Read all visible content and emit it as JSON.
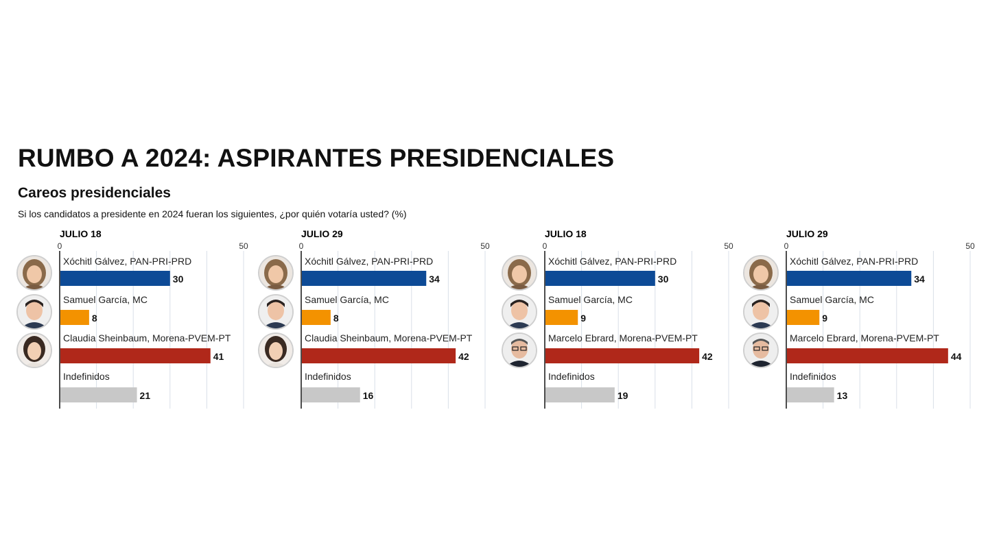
{
  "header": {
    "title": "RUMBO A 2024: ASPIRANTES PRESIDENCIALES",
    "subtitle": "Careos presidenciales",
    "question": "Si los candidatos a presidente en 2024 fueran los siguientes, ¿por quién votaría usted?  (%)"
  },
  "colors": {
    "pan": "#0d4a96",
    "mc": "#f39200",
    "morena": "#b0281a",
    "undecided": "#c8c8c8",
    "grid": "#d8dfe8",
    "axis": "#111111"
  },
  "chart_data": [
    {
      "type": "bar",
      "orientation": "horizontal",
      "title": "JULIO 18",
      "xlim": [
        0,
        50
      ],
      "ticks": [
        0,
        50
      ],
      "categories": [
        "Xóchitl Gálvez, PAN-PRI-PRD",
        "Samuel García, MC",
        "Claudia Sheinbaum, Morena-PVEM-PT",
        "Indefinidos"
      ],
      "values": [
        30,
        8,
        41,
        21
      ],
      "avatars": [
        "woman-light-hair-avatar-icon",
        "man-avatar-icon",
        "woman-dark-hair-avatar-icon",
        ""
      ],
      "bar_colors": [
        "pan",
        "mc",
        "morena",
        "undecided"
      ]
    },
    {
      "type": "bar",
      "orientation": "horizontal",
      "title": "JULIO 29",
      "xlim": [
        0,
        50
      ],
      "ticks": [
        0,
        50
      ],
      "categories": [
        "Xóchitl Gálvez, PAN-PRI-PRD",
        "Samuel García, MC",
        "Claudia Sheinbaum, Morena-PVEM-PT",
        "Indefinidos"
      ],
      "values": [
        34,
        8,
        42,
        16
      ],
      "avatars": [
        "woman-light-hair-avatar-icon",
        "man-avatar-icon",
        "woman-dark-hair-avatar-icon",
        ""
      ],
      "bar_colors": [
        "pan",
        "mc",
        "morena",
        "undecided"
      ]
    },
    {
      "type": "bar",
      "orientation": "horizontal",
      "title": "JULIO 18",
      "xlim": [
        0,
        50
      ],
      "ticks": [
        0,
        50
      ],
      "categories": [
        "Xóchitl Gálvez, PAN-PRI-PRD",
        "Samuel García, MC",
        "Marcelo Ebrard, Morena-PVEM-PT",
        "Indefinidos"
      ],
      "values": [
        30,
        9,
        42,
        19
      ],
      "avatars": [
        "woman-light-hair-avatar-icon",
        "man-avatar-icon",
        "man-glasses-avatar-icon",
        ""
      ],
      "bar_colors": [
        "pan",
        "mc",
        "morena",
        "undecided"
      ]
    },
    {
      "type": "bar",
      "orientation": "horizontal",
      "title": "JULIO 29",
      "xlim": [
        0,
        50
      ],
      "ticks": [
        0,
        50
      ],
      "categories": [
        "Xóchitl Gálvez, PAN-PRI-PRD",
        "Samuel García, MC",
        "Marcelo Ebrard, Morena-PVEM-PT",
        "Indefinidos"
      ],
      "values": [
        34,
        9,
        44,
        13
      ],
      "avatars": [
        "woman-light-hair-avatar-icon",
        "man-avatar-icon",
        "man-glasses-avatar-icon",
        ""
      ],
      "bar_colors": [
        "pan",
        "mc",
        "morena",
        "undecided"
      ]
    }
  ]
}
